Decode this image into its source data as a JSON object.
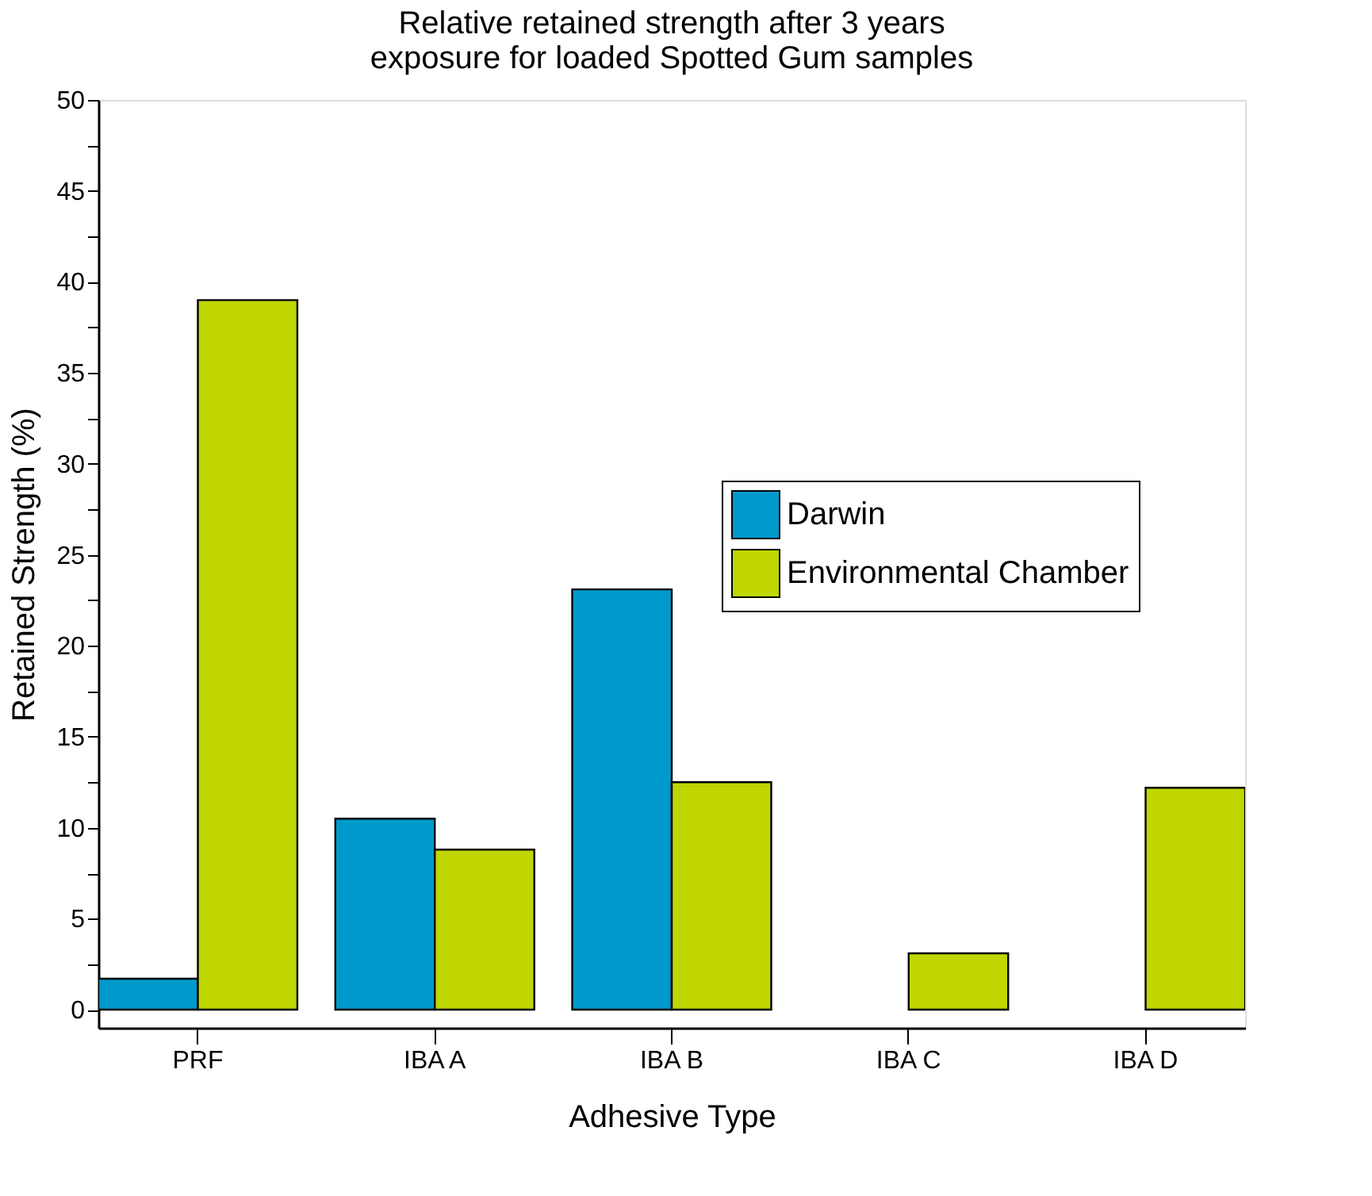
{
  "chart_data": {
    "type": "bar",
    "title": "Relative retained strength after 3 years\nexposure for loaded Spotted Gum samples",
    "xlabel": "Adhesive Type",
    "ylabel": "Retained Strength (%)",
    "categories": [
      "PRF",
      "IBA A",
      "IBA B",
      "IBA C",
      "IBA D"
    ],
    "series": [
      {
        "name": "Darwin",
        "color": "#0099cc",
        "values": [
          1.7,
          10.5,
          23.1,
          0,
          0
        ]
      },
      {
        "name": "Environmental Chamber",
        "color": "#bfd600",
        "values": [
          39.0,
          8.8,
          12.5,
          3.1,
          12.2
        ]
      }
    ],
    "ylim": [
      -1,
      50
    ],
    "yticks": [
      0,
      {
        "value": 2.5,
        "label": null
      },
      5,
      {
        "value": 7.5,
        "label": null
      },
      10,
      {
        "value": 12.5,
        "label": null
      },
      15,
      {
        "value": 17.5,
        "label": null
      },
      20,
      {
        "value": 22.5,
        "label": null
      },
      25,
      {
        "value": 27.5,
        "label": null
      },
      30,
      {
        "value": 32.5,
        "label": null
      },
      35,
      {
        "value": 37.5,
        "label": null
      },
      40,
      {
        "value": 42.5,
        "label": null
      },
      45,
      {
        "value": 47.5,
        "label": null
      },
      50
    ],
    "legend": "top right",
    "grid": false
  }
}
